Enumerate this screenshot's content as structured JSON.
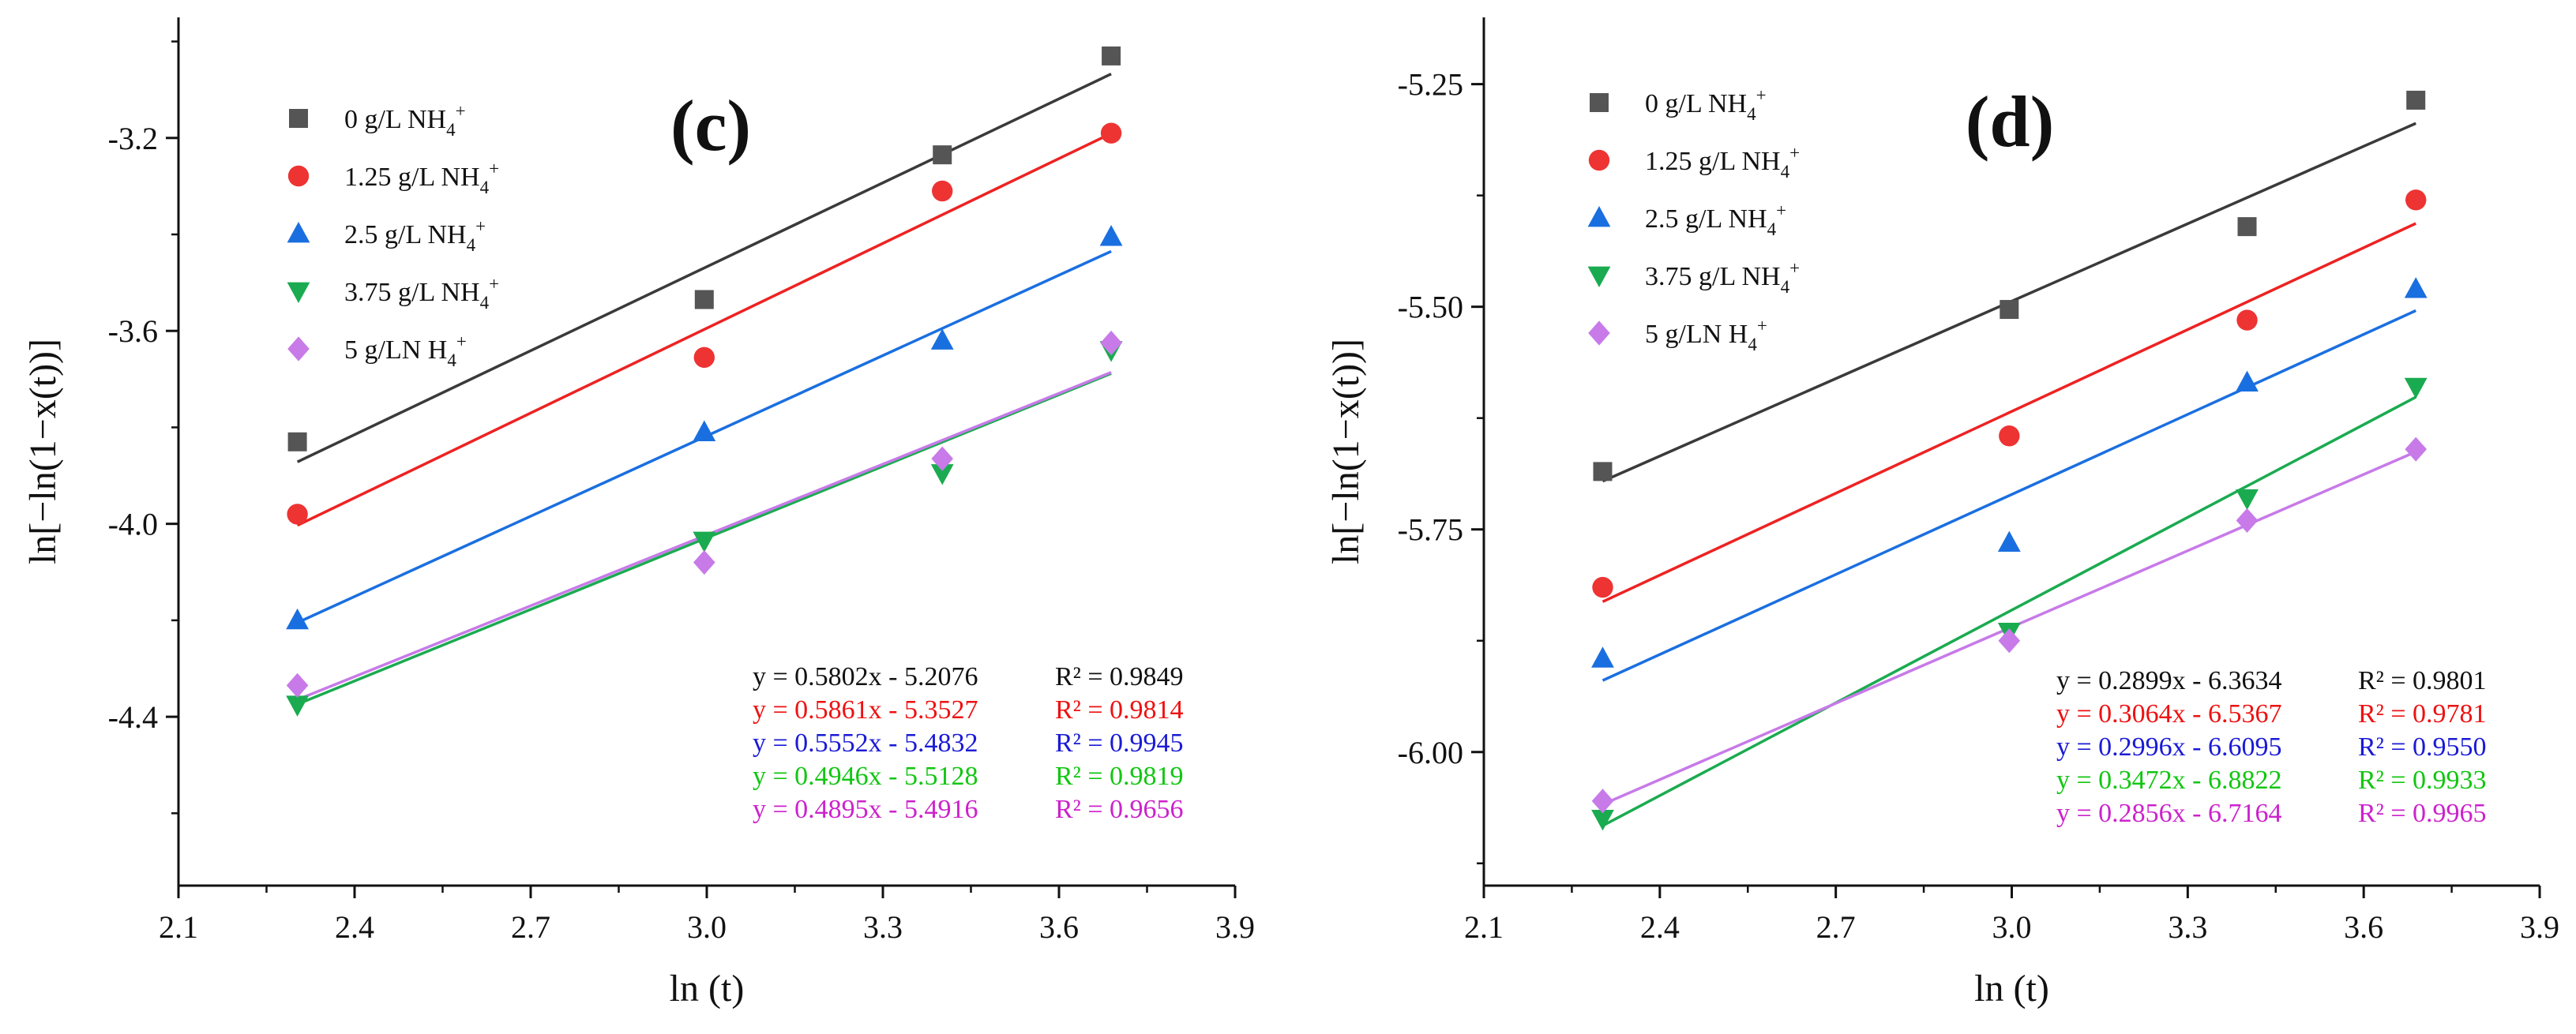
{
  "chart_data": [
    {
      "type": "scatter",
      "panel_label": "(c)",
      "xlabel": "ln (t)",
      "ylabel": "ln[−ln(1−x(t))]",
      "xlim": [
        2.1,
        3.9
      ],
      "ylim": [
        -4.75,
        -2.95
      ],
      "xticks": [
        "2.1",
        "2.4",
        "2.7",
        "3.0",
        "3.3",
        "3.6",
        "3.9"
      ],
      "yticks": [
        "-3.2",
        "-3.6",
        "-4.0",
        "-4.4"
      ],
      "ytick_values": [
        -3.2,
        -3.6,
        -4.0,
        -4.4
      ],
      "grid": false,
      "legend_position": "top-left",
      "series": [
        {
          "name": "0 g/L NH",
          "sup": "+",
          "sub": "4",
          "marker": "square",
          "color": "#555555",
          "line_color": "#3a3a3a",
          "x": [
            2.3026,
            2.9957,
            3.4012,
            3.6889
          ],
          "y": [
            -3.83,
            -3.535,
            -3.235,
            -3.03
          ],
          "fit": {
            "slope": 0.5802,
            "intercept": -5.2076
          },
          "equation": "y = 0.5802x - 5.2076",
          "r2": "R² = 0.9849",
          "text_color": "#111111"
        },
        {
          "name": "1.25 g/L NH",
          "sup": "+",
          "sub": "4",
          "marker": "circle",
          "color": "#ee3333",
          "line_color": "#ee2222",
          "x": [
            2.3026,
            2.9957,
            3.4012,
            3.6889
          ],
          "y": [
            -3.98,
            -3.655,
            -3.31,
            -3.19
          ],
          "fit": {
            "slope": 0.5861,
            "intercept": -5.3527
          },
          "equation": "y = 0.5861x - 5.3527",
          "r2": "R² = 0.9814",
          "text_color": "#ee1111"
        },
        {
          "name": "2.5 g/L NH",
          "sup": "+",
          "sub": "4",
          "marker": "triangle-up",
          "color": "#1a6fe0",
          "line_color": "#1a6fe0",
          "x": [
            2.3026,
            2.9957,
            3.4012,
            3.6889
          ],
          "y": [
            -4.2,
            -3.81,
            -3.62,
            -3.405
          ],
          "fit": {
            "slope": 0.5552,
            "intercept": -5.4832
          },
          "equation": "y = 0.5552x - 5.4832",
          "r2": "R² = 0.9945",
          "text_color": "#1a1ad6"
        },
        {
          "name": "3.75 g/L NH",
          "sup": "+",
          "sub": "4",
          "marker": "triangle-down",
          "color": "#1aab50",
          "line_color": "#1aab50",
          "x": [
            2.3026,
            2.9957,
            3.4012,
            3.6889
          ],
          "y": [
            -4.375,
            -4.035,
            -3.895,
            -3.64
          ],
          "fit": {
            "slope": 0.4946,
            "intercept": -5.5128
          },
          "equation": "y = 0.4946x - 5.5128",
          "r2": "R² = 0.9819",
          "text_color": "#11c611"
        },
        {
          "name": "5 g/LN H",
          "sup": "+",
          "sub": "4",
          "marker": "diamond",
          "color": "#c77ae8",
          "line_color": "#c77ae8",
          "x": [
            2.3026,
            2.9957,
            3.4012,
            3.6889
          ],
          "y": [
            -4.335,
            -4.08,
            -3.865,
            -3.625
          ],
          "fit": {
            "slope": 0.4895,
            "intercept": -5.4916
          },
          "equation": "y = 0.4895x - 5.4916",
          "r2": "R² = 0.9656",
          "text_color": "#cc22cc"
        }
      ]
    },
    {
      "type": "scatter",
      "panel_label": "(d)",
      "xlabel": "ln (t)",
      "ylabel": "ln[−ln(1−x(t))]",
      "xlim": [
        2.1,
        3.9
      ],
      "ylim": [
        -6.15,
        -5.175
      ],
      "xticks": [
        "2.1",
        "2.4",
        "2.7",
        "3.0",
        "3.3",
        "3.6",
        "3.9"
      ],
      "yticks": [
        "-5.25",
        "-5.50",
        "-5.75",
        "-6.00"
      ],
      "ytick_values": [
        -5.25,
        -5.5,
        -5.75,
        -6.0
      ],
      "grid": false,
      "legend_position": "top-left",
      "series": [
        {
          "name": "0 g/L NH",
          "sup": "+",
          "sub": "4",
          "marker": "square",
          "color": "#555555",
          "line_color": "#3a3a3a",
          "x": [
            2.3026,
            2.9957,
            3.4012,
            3.6889
          ],
          "y": [
            -5.685,
            -5.503,
            -5.41,
            -5.268
          ],
          "fit": {
            "slope": 0.2899,
            "intercept": -6.3634
          },
          "equation": "y = 0.2899x - 6.3634",
          "r2": "R² = 0.9801",
          "text_color": "#111111"
        },
        {
          "name": "1.25 g/L NH",
          "sup": "+",
          "sub": "4",
          "marker": "circle",
          "color": "#ee3333",
          "line_color": "#ee2222",
          "x": [
            2.3026,
            2.9957,
            3.4012,
            3.6889
          ],
          "y": [
            -5.815,
            -5.645,
            -5.515,
            -5.38
          ],
          "fit": {
            "slope": 0.3064,
            "intercept": -6.5367
          },
          "equation": "y = 0.3064x - 6.5367",
          "r2": "R² = 0.9781",
          "text_color": "#ee1111"
        },
        {
          "name": "2.5 g/L NH",
          "sup": "+",
          "sub": "4",
          "marker": "triangle-up",
          "color": "#1a6fe0",
          "line_color": "#1a6fe0",
          "x": [
            2.3026,
            2.9957,
            3.4012,
            3.6889
          ],
          "y": [
            -5.895,
            -5.765,
            -5.585,
            -5.48
          ],
          "fit": {
            "slope": 0.2996,
            "intercept": -6.6095
          },
          "equation": "y = 0.2996x - 6.6095",
          "r2": "R² = 0.9550",
          "text_color": "#1a1ad6"
        },
        {
          "name": "3.75 g/L NH",
          "sup": "+",
          "sub": "4",
          "marker": "triangle-down",
          "color": "#1aab50",
          "line_color": "#1aab50",
          "x": [
            2.3026,
            2.9957,
            3.4012,
            3.6889
          ],
          "y": [
            -6.075,
            -5.865,
            -5.715,
            -5.59
          ],
          "fit": {
            "slope": 0.3472,
            "intercept": -6.8822
          },
          "equation": "y = 0.3472x - 6.8822",
          "r2": "R² = 0.9933",
          "text_color": "#11c611"
        },
        {
          "name": "5 g/LN H",
          "sup": "+",
          "sub": "4",
          "marker": "diamond",
          "color": "#c77ae8",
          "line_color": "#c77ae8",
          "x": [
            2.3026,
            2.9957,
            3.4012,
            3.6889
          ],
          "y": [
            -6.055,
            -5.875,
            -5.74,
            -5.66
          ],
          "fit": {
            "slope": 0.2856,
            "intercept": -6.7164
          },
          "equation": "y = 0.2856x - 6.7164",
          "r2": "R² = 0.9965",
          "text_color": "#cc22cc"
        }
      ]
    }
  ]
}
